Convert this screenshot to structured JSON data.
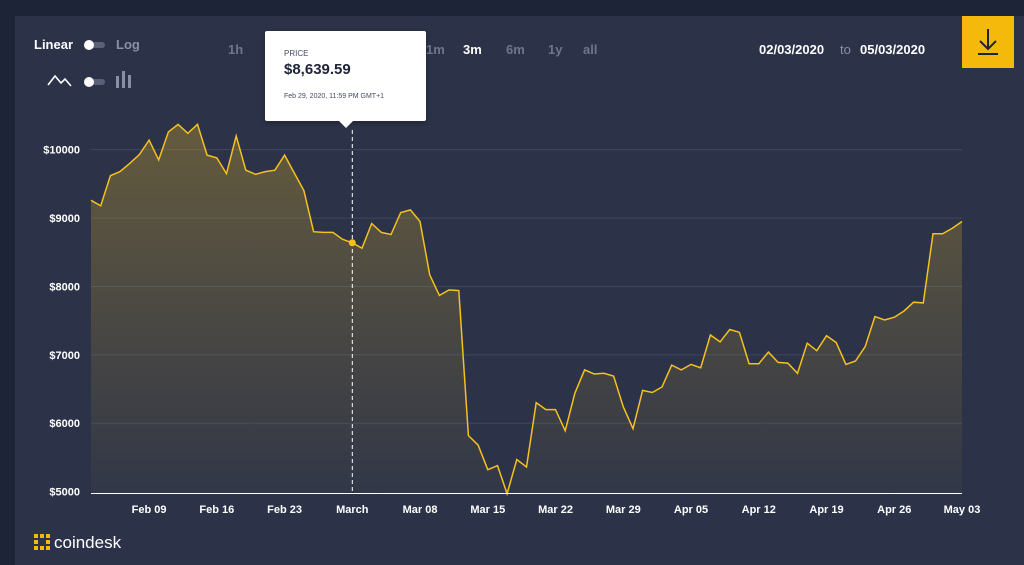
{
  "controls": {
    "scale_linear": "Linear",
    "scale_log": "Log",
    "ranges": [
      "1h",
      "1m",
      "3m",
      "6m",
      "1y",
      "all"
    ],
    "active_range": "3m",
    "date_from": "02/03/2020",
    "date_to_word": "to",
    "date_to": "05/03/2020"
  },
  "tooltip": {
    "label": "PRICE",
    "value": "$8,639.59",
    "date": "Feb 29, 2020, 11:59 PM GMT+1"
  },
  "brand": {
    "name": "coindesk"
  },
  "colors": {
    "background": "#1e2438",
    "panel": "#2c3349",
    "line": "#f5c11e",
    "accent": "#f5b90b"
  },
  "icons": [
    "line-chart-icon",
    "candlestick-icon",
    "download-icon",
    "coindesk-logo-icon"
  ],
  "chart_data": {
    "type": "area",
    "title": "",
    "xlabel": "",
    "ylabel": "",
    "ylim": [
      4980,
      10200
    ],
    "y_ticks": [
      5000,
      6000,
      7000,
      8000,
      9000,
      10000
    ],
    "y_tick_labels": [
      "$5000",
      "$6000",
      "$7000",
      "$8000",
      "$9000",
      "$10000"
    ],
    "x_start": "2020-02-03",
    "x_tick_labels": [
      "Feb 09",
      "Feb 16",
      "Feb 23",
      "March",
      "Mar 08",
      "Mar 15",
      "Mar 22",
      "Mar 29",
      "Apr 05",
      "Apr 12",
      "Apr 19",
      "Apr 26",
      "May 03"
    ],
    "x_tick_index": [
      6,
      13,
      20,
      27,
      34,
      41,
      48,
      55,
      62,
      69,
      76,
      83,
      90
    ],
    "values": [
      9260,
      9180,
      9620,
      9680,
      9800,
      9930,
      10140,
      9850,
      10260,
      10370,
      10240,
      10370,
      9920,
      9880,
      9650,
      10200,
      9700,
      9640,
      9680,
      9700,
      9920,
      9660,
      9400,
      8800,
      8790,
      8790,
      8690,
      8639,
      8560,
      8920,
      8790,
      8760,
      9080,
      9120,
      8950,
      8170,
      7870,
      7950,
      7940,
      5820,
      5680,
      5320,
      5380,
      4970,
      5470,
      5360,
      6300,
      6200,
      6200,
      5890,
      6440,
      6780,
      6720,
      6730,
      6690,
      6240,
      5920,
      6480,
      6450,
      6530,
      6850,
      6780,
      6860,
      6810,
      7290,
      7190,
      7370,
      7330,
      6870,
      6870,
      7040,
      6890,
      6880,
      6730,
      7170,
      7060,
      7280,
      7180,
      6860,
      6910,
      7120,
      7560,
      7510,
      7550,
      7640,
      7770,
      7760,
      8770,
      8770,
      8850,
      8950
    ],
    "hover_index": 27,
    "hover_value": 8639.59,
    "grid": true
  }
}
